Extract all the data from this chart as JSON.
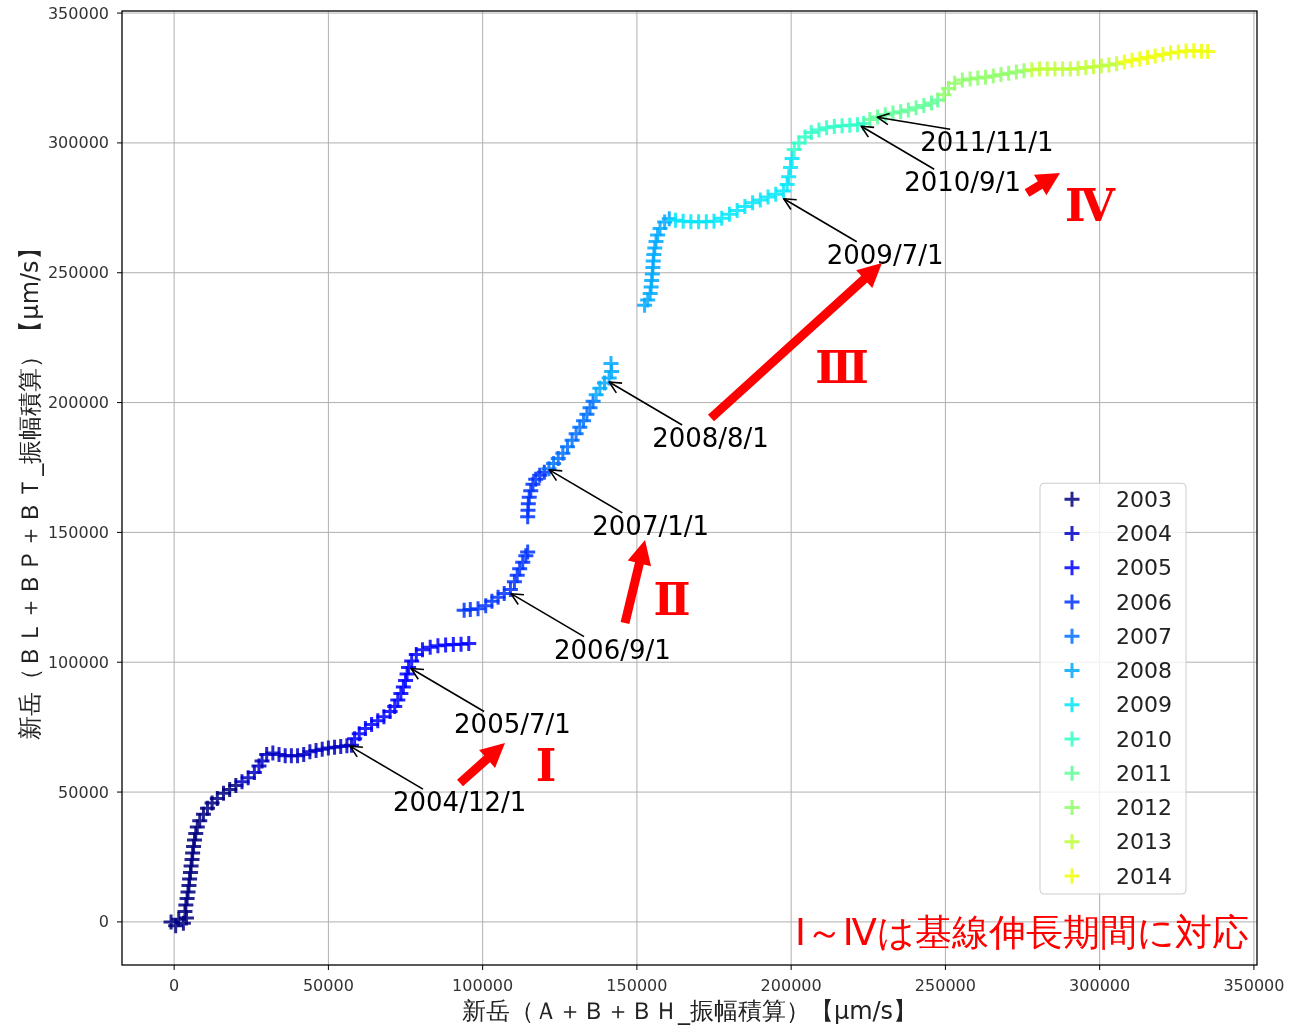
{
  "chart_data": {
    "type": "scatter",
    "xlabel": "新岳（Ａ＋Ｂ＋ＢＨ_振幅積算）【μm/s】",
    "ylabel": "新岳（ＢＬ＋ＢＰ＋ＢＴ_振幅積算）【μm/s】",
    "xlim": [
      -16900,
      351000
    ],
    "ylim": [
      -16600,
      350800
    ],
    "xticks": [
      0,
      50000,
      100000,
      150000,
      200000,
      250000,
      300000,
      350000
    ],
    "yticks": [
      0,
      50000,
      100000,
      150000,
      200000,
      250000,
      300000,
      350000
    ],
    "grid": true,
    "legend": "bottom right",
    "marker": "cross",
    "series": [
      {
        "name": "2003",
        "color": "#000080",
        "x": [
          -1000,
          500,
          1500,
          3000,
          4000,
          3500,
          3800,
          4200,
          4500,
          4800,
          5000,
          5300,
          5500,
          5800,
          6000,
          6300,
          6600,
          7000,
          7500,
          8300,
          9500,
          10800,
          12300,
          14000,
          16000,
          18000,
          20000
        ],
        "values": [
          0,
          -1500,
          1000,
          -500,
          1500,
          4000,
          6500,
          9000,
          11500,
          14000,
          16500,
          19000,
          21500,
          24000,
          26500,
          29000,
          31500,
          34000,
          36500,
          39000,
          41500,
          43800,
          45800,
          47500,
          49500,
          51000,
          52500
        ]
      },
      {
        "name": "2004",
        "color": "#0000c3",
        "x": [
          22000,
          24000,
          26000,
          27500,
          28500,
          30000,
          32000,
          34000,
          36000,
          38000,
          40000,
          42000,
          44000,
          46000,
          48000,
          50000,
          52000,
          54000,
          56000,
          57500
        ],
        "values": [
          54000,
          55500,
          57500,
          60000,
          62000,
          64500,
          65000,
          64500,
          64000,
          64000,
          64000,
          64500,
          65500,
          66000,
          66500,
          67000,
          67300,
          67500,
          67800,
          68000
        ]
      },
      {
        "name": "2005",
        "color": "#0000ff",
        "x": [
          58500,
          60000,
          62000,
          64000,
          66000,
          68000,
          70000,
          71500,
          72500,
          73500,
          74300,
          75000,
          75500,
          76000,
          77000,
          78500,
          80500,
          83000,
          85500,
          88000,
          90500,
          93000,
          95500
        ],
        "values": [
          70500,
          72500,
          74500,
          76000,
          77500,
          79000,
          81000,
          83000,
          85500,
          88000,
          90500,
          93000,
          95500,
          98000,
          100500,
          103000,
          104800,
          105800,
          106300,
          106600,
          106800,
          106900,
          107200
        ]
      },
      {
        "name": "2006",
        "color": "#0033ff",
        "x": [
          94000,
          96000,
          98500,
          101000,
          103000,
          105000,
          107000,
          109000,
          110300,
          111200,
          112000,
          113000,
          114000,
          114600,
          114600,
          114700,
          114800,
          115100,
          115600,
          116300,
          117200,
          118500,
          120000
        ],
        "values": [
          120000,
          120300,
          120600,
          121800,
          123500,
          125000,
          126500,
          128000,
          131000,
          133500,
          136000,
          138500,
          141000,
          142500,
          156000,
          158500,
          161000,
          163500,
          166000,
          168500,
          170500,
          172000,
          173200
        ]
      },
      {
        "name": "2007",
        "color": "#006eff",
        "x": [
          121500,
          123000,
          124500,
          126000,
          127500,
          129000,
          130300,
          131500,
          132700,
          133800,
          134800,
          135800
        ],
        "values": [
          174500,
          176500,
          178500,
          180500,
          183000,
          185500,
          188000,
          190500,
          193000,
          195500,
          198000,
          200500
        ]
      },
      {
        "name": "2008",
        "color": "#00a9ff",
        "x": [
          136800,
          138000,
          139500,
          141000,
          141800,
          141600,
          152500,
          153500,
          154300,
          154600,
          154800,
          155000,
          155200,
          155300,
          155500,
          155800,
          156200,
          156700,
          157500,
          159000,
          160500
        ],
        "values": [
          203000,
          205500,
          207500,
          209500,
          212000,
          215000,
          237500,
          239500,
          242000,
          244500,
          247000,
          249500,
          252000,
          254500,
          257000,
          259500,
          262000,
          264500,
          267000,
          269500,
          270800
        ]
      },
      {
        "name": "2009",
        "color": "#00e5f8",
        "x": [
          162500,
          165000,
          167500,
          170000,
          172500,
          175000,
          177500,
          180000,
          182500,
          185000,
          187500,
          190000,
          192500,
          195000,
          197500,
          198700,
          199200,
          199800,
          200300
        ],
        "values": [
          270200,
          269800,
          269600,
          269600,
          269600,
          269800,
          271000,
          272500,
          274000,
          275500,
          277000,
          278000,
          279200,
          280200,
          281500,
          284000,
          287000,
          290500,
          294000
        ]
      },
      {
        "name": "2010",
        "color": "#2fffc8",
        "x": [
          201000,
          202500,
          204500,
          206500,
          209000,
          211500,
          214000,
          216500,
          219000,
          221500,
          223500
        ],
        "values": [
          297500,
          300000,
          302300,
          304000,
          305000,
          305800,
          306300,
          306600,
          306800,
          307000,
          307500
        ]
      },
      {
        "name": "2011",
        "color": "#5fff98",
        "x": [
          225500,
          228000,
          230500,
          233000,
          235500,
          238000,
          240500,
          243000,
          245500,
          247500
        ],
        "values": [
          309000,
          310000,
          310800,
          311500,
          312000,
          312700,
          313500,
          314400,
          315400,
          316500
        ]
      },
      {
        "name": "2012",
        "color": "#8fff67",
        "x": [
          249500,
          251000,
          253000,
          255500,
          258000,
          260500,
          263000,
          265500,
          268000,
          270500,
          273000,
          275500
        ],
        "values": [
          318500,
          321000,
          323000,
          324200,
          324600,
          325000,
          325300,
          325800,
          326300,
          326800,
          327300,
          327800
        ]
      },
      {
        "name": "2013",
        "color": "#bfff38",
        "x": [
          278000,
          280500,
          283000,
          285500,
          288000,
          290500,
          293000,
          295500,
          298000,
          300500,
          303000,
          305500
        ],
        "values": [
          328200,
          328500,
          328500,
          328500,
          328500,
          328500,
          328700,
          329000,
          329300,
          329600,
          330000,
          330500
        ]
      },
      {
        "name": "2014",
        "color": "#eeff08",
        "x": [
          308000,
          310500,
          313000,
          315500,
          318000,
          320500,
          323000,
          325500,
          328000,
          330500,
          333000,
          335000
        ],
        "values": [
          331200,
          331800,
          332300,
          332900,
          333500,
          334000,
          334600,
          335000,
          335400,
          335500,
          335300,
          335200
        ]
      }
    ],
    "annotations": [
      {
        "text": "2004/12/1",
        "x": 57000,
        "y": 67700
      },
      {
        "text": "2005/7/1",
        "x": 76800,
        "y": 97600
      },
      {
        "text": "2006/9/1",
        "x": 109200,
        "y": 126400
      },
      {
        "text": "2007/1/1",
        "x": 121600,
        "y": 174100
      },
      {
        "text": "2008/8/1",
        "x": 141000,
        "y": 207900
      },
      {
        "text": "2009/7/1",
        "x": 197600,
        "y": 278500
      },
      {
        "text": "2010/9/1",
        "x": 222700,
        "y": 306400
      },
      {
        "text": "2011/11/1",
        "x": 227900,
        "y": 309900
      },
      "Ⅰ",
      "Ⅱ",
      "Ⅲ",
      "Ⅳ",
      "Ⅰ～Ⅳは基線伸長期間に対応"
    ]
  }
}
